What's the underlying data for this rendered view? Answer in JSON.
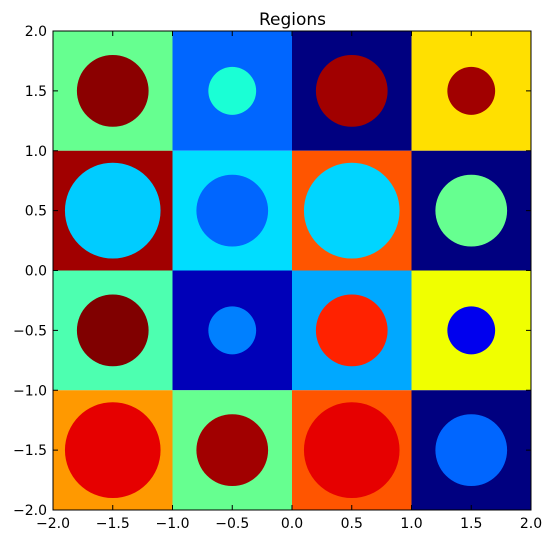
{
  "chart_data": {
    "type": "heatmap",
    "title": "Regions",
    "xlabel": "",
    "ylabel": "",
    "xlim": [
      -2.0,
      2.0
    ],
    "ylim": [
      -2.0,
      2.0
    ],
    "grid": false,
    "x_ticks": [
      "−2.0",
      "−1.5",
      "−1.0",
      "−0.5",
      "0.0",
      "0.5",
      "1.0",
      "1.5",
      "2.0"
    ],
    "y_ticks": [
      "−2.0",
      "−1.5",
      "−1.0",
      "−0.5",
      "0.0",
      "0.5",
      "1.0",
      "1.5",
      "2.0"
    ],
    "x_tick_values": [
      -2.0,
      -1.5,
      -1.0,
      -0.5,
      0.0,
      0.5,
      1.0,
      1.5,
      2.0
    ],
    "y_tick_values": [
      -2.0,
      -1.5,
      -1.0,
      -0.5,
      0.0,
      0.5,
      1.0,
      1.5,
      2.0
    ],
    "cells": [
      {
        "x": [
          -2.0,
          -1.0
        ],
        "y": [
          1.0,
          2.0
        ],
        "background": "#66ff90",
        "circle": {
          "center": [
            -1.5,
            1.5
          ],
          "radius": 0.3,
          "color": "#8b0000"
        }
      },
      {
        "x": [
          -1.0,
          0.0
        ],
        "y": [
          1.0,
          2.0
        ],
        "background": "#0066ff",
        "circle": {
          "center": [
            -0.5,
            1.5
          ],
          "radius": 0.2,
          "color": "#1affd5"
        }
      },
      {
        "x": [
          0.0,
          1.0
        ],
        "y": [
          1.0,
          2.0
        ],
        "background": "#000080",
        "circle": {
          "center": [
            0.5,
            1.5
          ],
          "radius": 0.3,
          "color": "#a10000"
        }
      },
      {
        "x": [
          1.0,
          2.0
        ],
        "y": [
          1.0,
          2.0
        ],
        "background": "#ffe000",
        "circle": {
          "center": [
            1.5,
            1.5
          ],
          "radius": 0.2,
          "color": "#a10000"
        }
      },
      {
        "x": [
          -2.0,
          -1.0
        ],
        "y": [
          0.0,
          1.0
        ],
        "background": "#a10000",
        "circle": {
          "center": [
            -1.5,
            0.5
          ],
          "radius": 0.4,
          "color": "#00ccff"
        }
      },
      {
        "x": [
          -1.0,
          0.0
        ],
        "y": [
          0.0,
          1.0
        ],
        "background": "#00ddff",
        "circle": {
          "center": [
            -0.5,
            0.5
          ],
          "radius": 0.3,
          "color": "#0066ff"
        }
      },
      {
        "x": [
          0.0,
          1.0
        ],
        "y": [
          0.0,
          1.0
        ],
        "background": "#ff5500",
        "circle": {
          "center": [
            0.5,
            0.5
          ],
          "radius": 0.4,
          "color": "#00d5ff"
        }
      },
      {
        "x": [
          1.0,
          2.0
        ],
        "y": [
          0.0,
          1.0
        ],
        "background": "#000080",
        "circle": {
          "center": [
            1.5,
            0.5
          ],
          "radius": 0.3,
          "color": "#66ff90"
        }
      },
      {
        "x": [
          -2.0,
          -1.0
        ],
        "y": [
          -1.0,
          0.0
        ],
        "background": "#4dffb0",
        "circle": {
          "center": [
            -1.5,
            -0.5
          ],
          "radius": 0.3,
          "color": "#800000"
        }
      },
      {
        "x": [
          -1.0,
          0.0
        ],
        "y": [
          -1.0,
          0.0
        ],
        "background": "#0000b8",
        "circle": {
          "center": [
            -0.5,
            -0.5
          ],
          "radius": 0.2,
          "color": "#0080ff"
        }
      },
      {
        "x": [
          0.0,
          1.0
        ],
        "y": [
          -1.0,
          0.0
        ],
        "background": "#00a8ff",
        "circle": {
          "center": [
            0.5,
            -0.5
          ],
          "radius": 0.3,
          "color": "#ff2200"
        }
      },
      {
        "x": [
          1.0,
          2.0
        ],
        "y": [
          -1.0,
          0.0
        ],
        "background": "#f0ff00",
        "circle": {
          "center": [
            1.5,
            -0.5
          ],
          "radius": 0.2,
          "color": "#0000ee"
        }
      },
      {
        "x": [
          -2.0,
          -1.0
        ],
        "y": [
          -2.0,
          -1.0
        ],
        "background": "#ff9900",
        "circle": {
          "center": [
            -1.5,
            -1.5
          ],
          "radius": 0.4,
          "color": "#e60000"
        }
      },
      {
        "x": [
          -1.0,
          0.0
        ],
        "y": [
          -2.0,
          -1.0
        ],
        "background": "#66ff90",
        "circle": {
          "center": [
            -0.5,
            -1.5
          ],
          "radius": 0.3,
          "color": "#a10000"
        }
      },
      {
        "x": [
          0.0,
          1.0
        ],
        "y": [
          -2.0,
          -1.0
        ],
        "background": "#ff5500",
        "circle": {
          "center": [
            0.5,
            -1.5
          ],
          "radius": 0.4,
          "color": "#e60000"
        }
      },
      {
        "x": [
          1.0,
          2.0
        ],
        "y": [
          -2.0,
          -1.0
        ],
        "background": "#000080",
        "circle": {
          "center": [
            1.5,
            -1.5
          ],
          "radius": 0.3,
          "color": "#0066ff"
        }
      }
    ]
  }
}
